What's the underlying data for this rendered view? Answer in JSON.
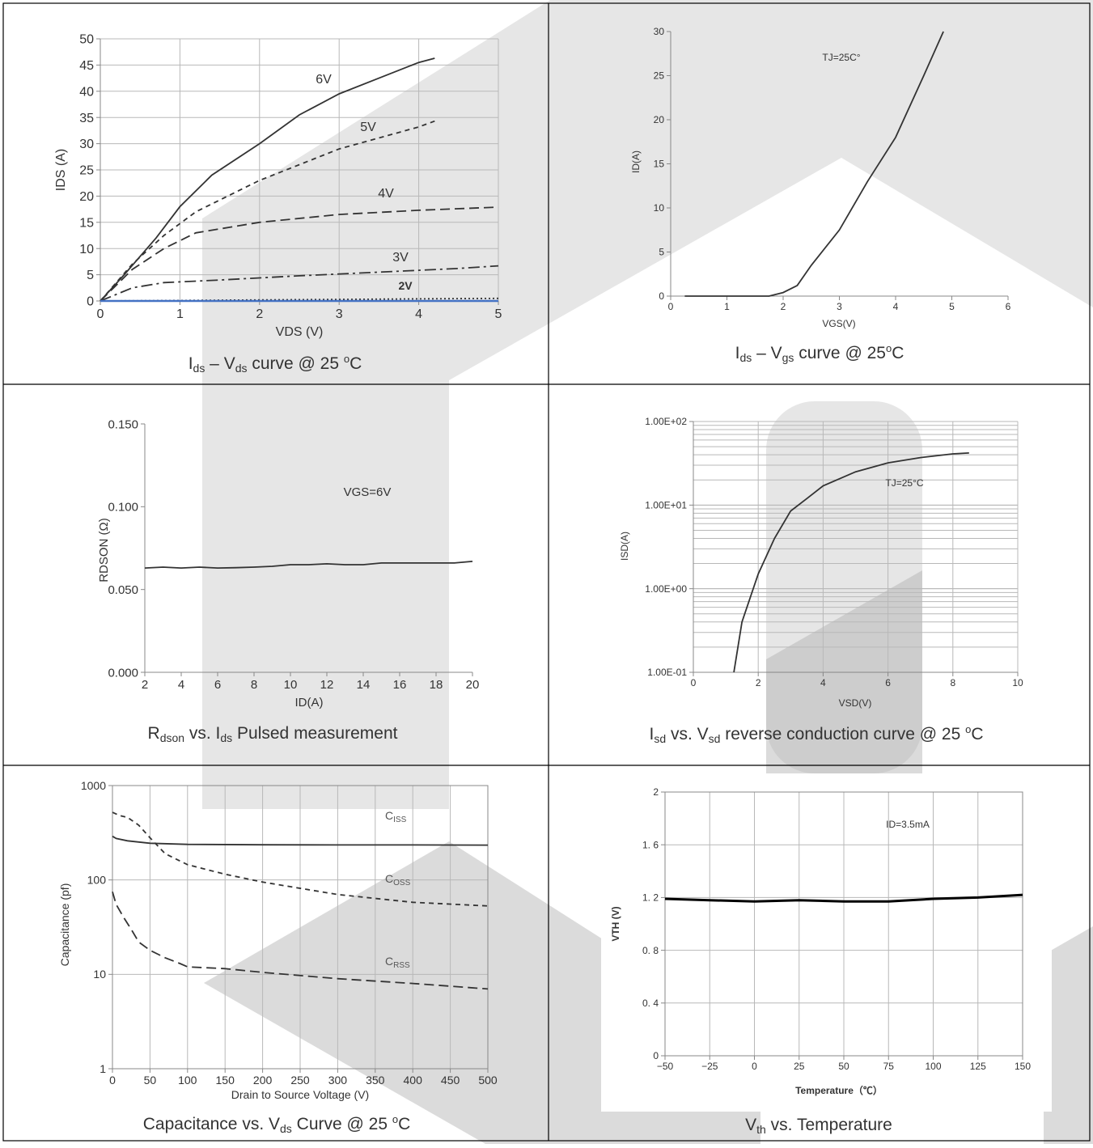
{
  "colors": {
    "line": "#333333",
    "grid": "#b8b8b8",
    "frame": "#000000",
    "blue": "#4472c4",
    "watermark": "#b0b0b0"
  },
  "panels": [
    {
      "id": "ids-vds",
      "caption": {
        "main": "I",
        "sub1": "ds",
        "mid": " – V",
        "sub2": "ds",
        "post": " curve @ 25 ",
        "sup": "o",
        "tail": "C"
      },
      "chart_data": {
        "type": "line",
        "xlabel": "VDS (V)",
        "ylabel": "IDS (A)",
        "xlim": [
          0,
          5
        ],
        "ylim": [
          0,
          50
        ],
        "xticks": [
          "0",
          "1",
          "2",
          "3",
          "4",
          "5"
        ],
        "yticks": [
          "0",
          "5",
          "10",
          "15",
          "20",
          "25",
          "30",
          "35",
          "40",
          "45",
          "50"
        ],
        "grid": true,
        "series": [
          {
            "name": "6V",
            "style": "solid",
            "x": [
              0,
              0.3,
              0.7,
              1.0,
              1.4,
              2.0,
              2.5,
              3.0,
              3.5,
              4.0,
              4.2
            ],
            "y": [
              0,
              5,
              12,
              18,
              24,
              30,
              35.5,
              39.5,
              42.5,
              45.5,
              46.3
            ]
          },
          {
            "name": "5V",
            "style": "short-dash",
            "x": [
              0,
              0.4,
              0.8,
              1.2,
              2.0,
              3.0,
              4.0,
              4.2
            ],
            "y": [
              0,
              7,
              12.5,
              17,
              23,
              29,
              33.2,
              34.3
            ]
          },
          {
            "name": "4V",
            "style": "long-dash",
            "x": [
              0,
              0.4,
              0.8,
              1.2,
              2.0,
              3.0,
              4.0,
              5.0
            ],
            "y": [
              0,
              6,
              10,
              13,
              15,
              16.5,
              17.3,
              17.9
            ]
          },
          {
            "name": "3V",
            "style": "dash-dot",
            "x": [
              0,
              0.4,
              0.8,
              1.5,
              2.5,
              3.5,
              4.5,
              5.0
            ],
            "y": [
              0,
              2.5,
              3.5,
              4,
              4.8,
              5.5,
              6.2,
              6.7
            ]
          },
          {
            "name": "2V",
            "style": "dot",
            "x": [
              0,
              1,
              2,
              3,
              4,
              5
            ],
            "y": [
              0,
              0.1,
              0.2,
              0.3,
              0.4,
              0.5
            ]
          },
          {
            "name": "",
            "style": "blue",
            "x": [
              0,
              5
            ],
            "y": [
              0,
              0
            ]
          }
        ]
      }
    },
    {
      "id": "ids-vgs",
      "caption": {
        "main": "I",
        "sub1": "ds",
        "mid": " – V",
        "sub2": "gs",
        "post": " curve @ 25",
        "sup": "o",
        "tail": "C"
      },
      "chart_data": {
        "type": "line",
        "xlabel": "VGS(V)",
        "ylabel": "ID(A)",
        "xlim": [
          0,
          6
        ],
        "ylim": [
          0,
          30
        ],
        "xticks": [
          "0",
          "1",
          "2",
          "3",
          "4",
          "5",
          "6"
        ],
        "yticks": [
          "0",
          "5",
          "10",
          "15",
          "20",
          "25",
          "30"
        ],
        "grid": false,
        "annotation": "TJ=25C°",
        "series": [
          {
            "name": "",
            "style": "solid",
            "x": [
              0.25,
              1.0,
              1.75,
              2.0,
              2.25,
              2.5,
              3.0,
              3.5,
              4.0,
              4.5,
              4.85
            ],
            "y": [
              0,
              0,
              0,
              0.4,
              1.2,
              3.5,
              7.5,
              13,
              18,
              25,
              30
            ]
          }
        ]
      }
    },
    {
      "id": "rdson-ids",
      "caption": {
        "main": "R",
        "sub1": "dson",
        "mid": " vs. I",
        "sub2": "ds",
        "post": " Pulsed measurement",
        "sup": "",
        "tail": ""
      },
      "chart_data": {
        "type": "line",
        "xlabel": "ID(A)",
        "ylabel": "RDSON (Ω)",
        "xlim": [
          2,
          20
        ],
        "ylim": [
          0,
          0.15
        ],
        "xticks": [
          "2",
          "4",
          "6",
          "8",
          "10",
          "12",
          "14",
          "16",
          "18",
          "20"
        ],
        "yticks": [
          "0.000",
          "0.050",
          "0.100",
          "0.150"
        ],
        "grid": false,
        "annotation": "VGS=6V",
        "series": [
          {
            "name": "",
            "style": "solid",
            "x": [
              2,
              3,
              4,
              5,
              6,
              7,
              8,
              9,
              10,
              11,
              12,
              13,
              14,
              15,
              16,
              17,
              18,
              19,
              20
            ],
            "y": [
              0.063,
              0.0635,
              0.063,
              0.0635,
              0.063,
              0.0632,
              0.0635,
              0.064,
              0.065,
              0.065,
              0.0655,
              0.065,
              0.065,
              0.066,
              0.066,
              0.066,
              0.066,
              0.066,
              0.067
            ]
          }
        ]
      }
    },
    {
      "id": "isd-vsd",
      "caption": {
        "main": "I",
        "sub1": "sd",
        "mid": " vs. V",
        "sub2": "sd",
        "post": " reverse conduction curve @ 25 ",
        "sup": "o",
        "tail": "C"
      },
      "chart_data": {
        "type": "line",
        "xlabel": "VSD(V)",
        "ylabel": "ISD(A)",
        "xlim": [
          0,
          10
        ],
        "ylim": [
          0.1,
          100
        ],
        "yscale": "log",
        "xticks": [
          "0",
          "2",
          "4",
          "6",
          "8",
          "10"
        ],
        "yticks": [
          "1.00E-01",
          "1.00E+00",
          "1.00E+01",
          "1.00E+02"
        ],
        "grid": true,
        "annotation": "TJ=25°C",
        "series": [
          {
            "name": "",
            "style": "solid",
            "x": [
              1.25,
              1.5,
              2.0,
              2.5,
              3.0,
              3.5,
              4.0,
              5.0,
              6.0,
              7.0,
              8.0,
              8.5
            ],
            "y": [
              0.1,
              0.4,
              1.5,
              4,
              8.5,
              12,
              17,
              25,
              32,
              37,
              41,
              42
            ]
          }
        ]
      }
    },
    {
      "id": "cap-vds",
      "caption": {
        "main": "Capacitance vs. V",
        "sub1": "ds",
        "mid": " Curve @ 25 ",
        "sub2": "",
        "post": "",
        "sup": "o",
        "tail": "C"
      },
      "chart_data": {
        "type": "line",
        "xlabel": "Drain to Source Voltage (V)",
        "ylabel": "Capacitance (pf)",
        "xlim": [
          0,
          500
        ],
        "ylim": [
          1,
          1000
        ],
        "yscale": "log",
        "xticks": [
          "0",
          "50",
          "100",
          "150",
          "200",
          "250",
          "300",
          "350",
          "400",
          "450",
          "500"
        ],
        "yticks": [
          "1",
          "10",
          "100",
          "1000"
        ],
        "grid": true,
        "labels": [
          {
            "main": "C",
            "sub": "ISS"
          },
          {
            "main": "C",
            "sub": "OSS"
          },
          {
            "main": "C",
            "sub": "RSS"
          }
        ],
        "series": [
          {
            "name": "CISS",
            "style": "solid",
            "x": [
              0,
              5,
              20,
              50,
              100,
              200,
              300,
              400,
              500
            ],
            "y": [
              290,
              275,
              260,
              245,
              238,
              236,
              235,
              235,
              234
            ]
          },
          {
            "name": "COSS",
            "style": "short-dash",
            "x": [
              0,
              10,
              20,
              35,
              50,
              70,
              100,
              150,
              200,
              300,
              400,
              500
            ],
            "y": [
              520,
              480,
              460,
              380,
              280,
              190,
              145,
              115,
              95,
              70,
              58,
              53
            ]
          },
          {
            "name": "CRSS",
            "style": "long-dash",
            "x": [
              0,
              5,
              15,
              25,
              35,
              50,
              70,
              90,
              100,
              150,
              200,
              300,
              400,
              500
            ],
            "y": [
              75,
              55,
              40,
              30,
              22,
              18,
              15,
              13,
              12,
              11.5,
              10.5,
              9,
              8,
              7
            ]
          }
        ]
      }
    },
    {
      "id": "vth-temp",
      "caption": {
        "main": "V",
        "sub1": "th",
        "mid": " vs. Temperature",
        "sub2": "",
        "post": "",
        "sup": "",
        "tail": ""
      },
      "chart_data": {
        "type": "line",
        "xlabel": "Temperature（℃）",
        "ylabel": "VTH (V)",
        "xlim": [
          -50,
          150
        ],
        "ylim": [
          0,
          2
        ],
        "xticks": [
          "−50",
          "−25",
          "0",
          "25",
          "50",
          "75",
          "100",
          "125",
          "150"
        ],
        "yticks": [
          "0",
          "0. 4",
          "0. 8",
          "1. 2",
          "1. 6",
          "2"
        ],
        "grid": true,
        "annotation": "ID=3.5mA",
        "series": [
          {
            "name": "",
            "style": "thick",
            "x": [
              -50,
              -25,
              0,
              25,
              50,
              75,
              100,
              125,
              150
            ],
            "y": [
              1.19,
              1.18,
              1.17,
              1.18,
              1.17,
              1.17,
              1.19,
              1.2,
              1.22
            ]
          }
        ]
      }
    }
  ]
}
